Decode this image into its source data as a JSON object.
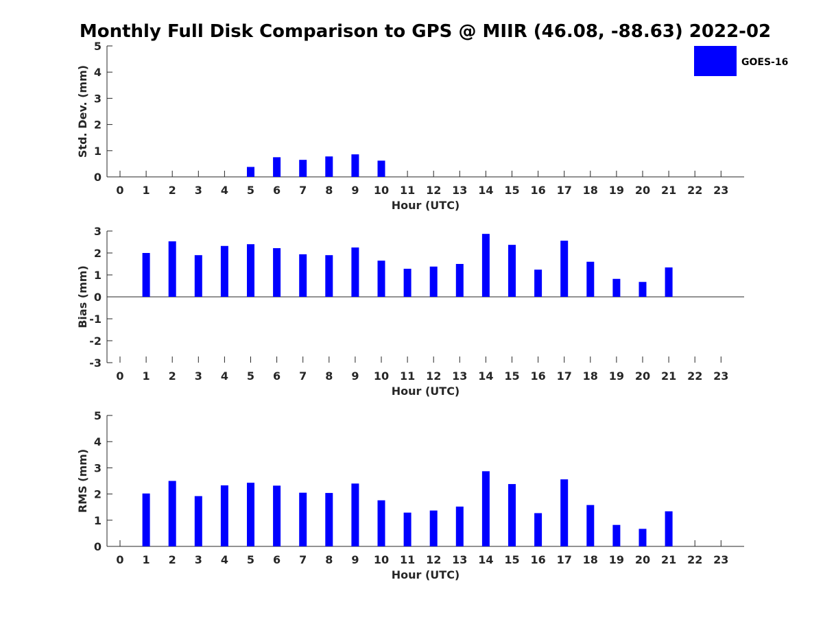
{
  "title": "Monthly Full Disk Comparison to GPS @ MIIR (46.08, -88.63) 2022-02",
  "legend": {
    "label": "GOES-16",
    "color": "#0000ff",
    "position": "top-right"
  },
  "chart_data": [
    {
      "type": "bar",
      "name": "std-dev",
      "categories": [
        "0",
        "1",
        "2",
        "3",
        "4",
        "5",
        "6",
        "7",
        "8",
        "9",
        "10",
        "11",
        "12",
        "13",
        "14",
        "15",
        "16",
        "17",
        "18",
        "19",
        "20",
        "21",
        "22",
        "23"
      ],
      "series": [
        {
          "name": "GOES-16",
          "color": "#0000ff",
          "values": [
            null,
            null,
            null,
            null,
            null,
            0.38,
            0.75,
            0.65,
            0.78,
            0.86,
            0.62,
            null,
            null,
            null,
            null,
            null,
            null,
            null,
            null,
            null,
            null,
            null,
            null,
            null
          ]
        }
      ],
      "xlabel": "Hour (UTC)",
      "ylabel": "Std. Dev. (mm)",
      "ylim": [
        0,
        5
      ],
      "yticks": [
        "0",
        "1",
        "2",
        "3",
        "4",
        "5"
      ],
      "grid": false
    },
    {
      "type": "bar",
      "name": "bias",
      "categories": [
        "0",
        "1",
        "2",
        "3",
        "4",
        "5",
        "6",
        "7",
        "8",
        "9",
        "10",
        "11",
        "12",
        "13",
        "14",
        "15",
        "16",
        "17",
        "18",
        "19",
        "20",
        "21",
        "22",
        "23"
      ],
      "series": [
        {
          "name": "GOES-16",
          "color": "#0000ff",
          "values": [
            null,
            2.0,
            2.53,
            1.9,
            2.32,
            2.4,
            2.22,
            1.94,
            1.9,
            2.25,
            1.65,
            1.28,
            1.38,
            1.5,
            2.87,
            2.37,
            1.24,
            2.56,
            1.6,
            0.82,
            0.68,
            1.34,
            null,
            null
          ]
        }
      ],
      "xlabel": "Hour (UTC)",
      "ylabel": "Bias (mm)",
      "ylim": [
        -3,
        3
      ],
      "yticks": [
        "-3",
        "-2",
        "-1",
        "0",
        "1",
        "2",
        "3"
      ],
      "grid": false
    },
    {
      "type": "bar",
      "name": "rms",
      "categories": [
        "0",
        "1",
        "2",
        "3",
        "4",
        "5",
        "6",
        "7",
        "8",
        "9",
        "10",
        "11",
        "12",
        "13",
        "14",
        "15",
        "16",
        "17",
        "18",
        "19",
        "20",
        "21",
        "22",
        "23"
      ],
      "series": [
        {
          "name": "GOES-16",
          "color": "#0000ff",
          "values": [
            null,
            2.02,
            2.5,
            1.92,
            2.33,
            2.43,
            2.32,
            2.05,
            2.04,
            2.4,
            1.76,
            1.29,
            1.37,
            1.52,
            2.87,
            2.38,
            1.27,
            2.56,
            1.58,
            0.82,
            0.67,
            1.34,
            null,
            null
          ]
        }
      ],
      "xlabel": "Hour (UTC)",
      "ylabel": "RMS (mm)",
      "ylim": [
        0,
        5
      ],
      "yticks": [
        "0",
        "1",
        "2",
        "3",
        "4",
        "5"
      ],
      "grid": false
    }
  ]
}
